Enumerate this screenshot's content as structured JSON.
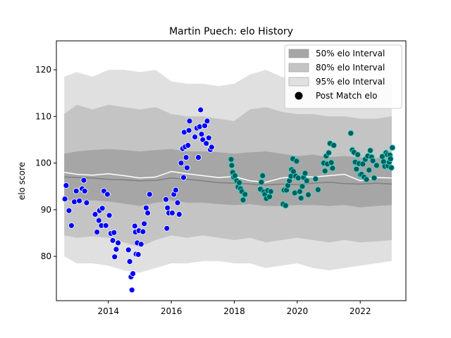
{
  "chart_data": {
    "type": "scatter",
    "title": "Martin Puech: elo History",
    "xlabel": "",
    "ylabel": "elo score",
    "xlim": [
      2012.35,
      2023.45
    ],
    "ylim": [
      70.5,
      126.2
    ],
    "x_ticks": [
      {
        "value": 2014,
        "label": "2014"
      },
      {
        "value": 2016,
        "label": "2016"
      },
      {
        "value": 2018,
        "label": "2018"
      },
      {
        "value": 2020,
        "label": "2020"
      },
      {
        "value": 2022,
        "label": "2022"
      }
    ],
    "y_ticks": [
      {
        "value": 80,
        "label": "80"
      },
      {
        "value": 90,
        "label": "90"
      },
      {
        "value": 100,
        "label": "100"
      },
      {
        "value": 110,
        "label": "110"
      },
      {
        "value": 120,
        "label": "120"
      }
    ],
    "grid": false,
    "legend_position": "top-right",
    "legend": [
      {
        "label": "50% elo Interval",
        "kind": "patch",
        "color": "#a6a6a6"
      },
      {
        "label": "80% elo Interval",
        "kind": "patch",
        "color": "#c4c4c4"
      },
      {
        "label": "95% elo Interval",
        "kind": "patch",
        "color": "#e0e0e0"
      },
      {
        "label": "Post Match elo",
        "kind": "marker",
        "color": "#000000"
      }
    ],
    "colors": {
      "band50": "#a6a6a6",
      "band80": "#c4c4c4",
      "band95": "#e0e0e0",
      "median_line": "#7f7f7f",
      "mean_line": "#ffffff",
      "points_early": "#0000ff",
      "points_late": "#006060",
      "points_late_edge": "#40e0d0",
      "point_edge": "#ffffff"
    },
    "bands": {
      "x": [
        2012.6,
        2013.0,
        2013.5,
        2014.0,
        2014.5,
        2015.0,
        2015.5,
        2016.0,
        2016.5,
        2017.0,
        2017.5,
        2018.0,
        2018.5,
        2019.0,
        2019.5,
        2020.0,
        2020.5,
        2021.0,
        2021.5,
        2022.0,
        2022.5,
        2023.0
      ],
      "p50_low": [
        92.2,
        91.9,
        92.0,
        91.8,
        91.3,
        90.8,
        91.5,
        92.0,
        91.5,
        91.5,
        91.2,
        91.0,
        91.2,
        90.8,
        90.8,
        91.0,
        91.0,
        90.8,
        91.0,
        90.5,
        90.8,
        91.0
      ],
      "p50_high": [
        102.0,
        102.5,
        102.8,
        103.0,
        102.8,
        102.5,
        102.8,
        103.0,
        102.5,
        102.5,
        102.3,
        102.0,
        102.3,
        102.5,
        102.0,
        101.5,
        101.8,
        101.3,
        101.5,
        101.2,
        101.0,
        101.3
      ],
      "p80_low": [
        84.5,
        84.0,
        84.3,
        84.0,
        83.0,
        82.0,
        83.5,
        84.5,
        84.0,
        84.5,
        84.0,
        83.5,
        84.0,
        83.0,
        83.5,
        84.0,
        83.5,
        83.0,
        83.5,
        83.0,
        83.2,
        83.5
      ],
      "p80_high": [
        110.5,
        112.5,
        111.5,
        112.5,
        112.0,
        111.5,
        112.0,
        110.5,
        110.0,
        110.0,
        109.5,
        109.0,
        111.5,
        112.0,
        111.0,
        110.5,
        110.5,
        110.0,
        110.0,
        109.5,
        109.5,
        110.0
      ],
      "p95_low": [
        80.0,
        78.5,
        78.5,
        78.0,
        77.0,
        76.5,
        77.5,
        78.5,
        78.5,
        79.0,
        79.0,
        78.5,
        78.5,
        77.5,
        78.0,
        78.5,
        77.5,
        77.0,
        77.5,
        78.0,
        78.5,
        79.0
      ],
      "p95_high": [
        118.5,
        119.5,
        118.5,
        120.0,
        120.0,
        119.5,
        120.0,
        117.5,
        117.0,
        117.0,
        116.5,
        117.0,
        119.0,
        120.0,
        118.5,
        118.0,
        117.5,
        117.0,
        117.0,
        117.0,
        117.5,
        118.0
      ]
    },
    "median_line": {
      "x": [
        2012.6,
        2013.0,
        2013.5,
        2014.0,
        2014.5,
        2015.0,
        2015.5,
        2016.0,
        2016.5,
        2017.0,
        2017.5,
        2018.0,
        2018.5,
        2019.0,
        2019.5,
        2020.0,
        2020.5,
        2021.0,
        2021.5,
        2022.0,
        2022.5,
        2023.0
      ],
      "y": [
        97.0,
        96.9,
        96.8,
        96.5,
        96.4,
        96.2,
        96.3,
        96.8,
        96.5,
        96.2,
        95.8,
        95.7,
        95.5,
        95.3,
        95.5,
        95.4,
        95.7,
        95.9,
        95.6,
        95.5,
        95.7,
        95.5
      ]
    },
    "mean_line": {
      "x": [
        2012.6,
        2013.0,
        2013.5,
        2014.0,
        2014.5,
        2015.0,
        2015.5,
        2016.0,
        2016.5,
        2017.0,
        2017.5,
        2018.0,
        2018.5,
        2019.0,
        2019.5,
        2020.0,
        2020.5,
        2021.0,
        2021.5,
        2022.0,
        2022.5,
        2023.0
      ],
      "y": [
        98.0,
        97.6,
        97.4,
        97.7,
        97.3,
        96.8,
        97.0,
        98.2,
        97.7,
        97.3,
        96.9,
        97.1,
        96.2,
        95.9,
        96.8,
        97.1,
        97.0,
        97.3,
        97.6,
        96.2,
        96.9,
        96.8
      ]
    },
    "series": [
      {
        "group": "early",
        "points": [
          [
            2012.62,
            92.3
          ],
          [
            2012.66,
            95.2
          ],
          [
            2012.75,
            89.8
          ],
          [
            2012.83,
            86.6
          ],
          [
            2012.92,
            91.7
          ],
          [
            2012.98,
            94.0
          ],
          [
            2013.08,
            91.9
          ],
          [
            2013.17,
            94.5
          ],
          [
            2013.22,
            96.3
          ],
          [
            2013.25,
            94.0
          ],
          [
            2013.31,
            91.5
          ],
          [
            2013.58,
            89.0
          ],
          [
            2013.64,
            85.2
          ],
          [
            2013.7,
            87.7
          ],
          [
            2013.72,
            89.8
          ],
          [
            2013.78,
            86.6
          ],
          [
            2013.81,
            90.3
          ],
          [
            2013.86,
            94.0
          ],
          [
            2013.92,
            86.6
          ],
          [
            2013.97,
            93.3
          ],
          [
            2014.03,
            88.8
          ],
          [
            2014.08,
            84.9
          ],
          [
            2014.14,
            83.4
          ],
          [
            2014.18,
            85.1
          ],
          [
            2014.2,
            79.9
          ],
          [
            2014.25,
            81.5
          ],
          [
            2014.31,
            82.9
          ],
          [
            2014.64,
            81.4
          ],
          [
            2014.68,
            78.9
          ],
          [
            2014.72,
            75.6
          ],
          [
            2014.75,
            72.8
          ],
          [
            2014.78,
            76.3
          ],
          [
            2014.84,
            86.5
          ],
          [
            2014.86,
            85.2
          ],
          [
            2014.88,
            80.5
          ],
          [
            2014.92,
            82.9
          ],
          [
            2014.95,
            80.4
          ],
          [
            2014.97,
            85.5
          ],
          [
            2015.04,
            82.6
          ],
          [
            2015.1,
            85.3
          ],
          [
            2015.14,
            87.0
          ],
          [
            2015.2,
            90.4
          ],
          [
            2015.25,
            89.3
          ],
          [
            2015.31,
            93.3
          ],
          [
            2015.83,
            92.2
          ],
          [
            2015.86,
            86.0
          ],
          [
            2015.88,
            90.4
          ],
          [
            2015.92,
            89.3
          ],
          [
            2016.03,
            89.3
          ],
          [
            2016.08,
            93.3
          ],
          [
            2016.14,
            94.2
          ],
          [
            2016.2,
            91.5
          ],
          [
            2016.25,
            89.0
          ],
          [
            2016.31,
            100.0
          ],
          [
            2016.36,
            103.1
          ],
          [
            2016.39,
            96.9
          ],
          [
            2016.41,
            106.6
          ],
          [
            2016.44,
            103.5
          ],
          [
            2016.47,
            101.2
          ],
          [
            2016.5,
            99.0
          ],
          [
            2016.53,
            103.8
          ],
          [
            2016.56,
            107.0
          ],
          [
            2016.58,
            109.0
          ],
          [
            2016.75,
            105.6
          ],
          [
            2016.81,
            107.5
          ],
          [
            2016.86,
            101.2
          ],
          [
            2016.9,
            107.8
          ],
          [
            2016.93,
            111.4
          ],
          [
            2016.96,
            106.2
          ],
          [
            2017.0,
            105.0
          ],
          [
            2017.06,
            108.0
          ],
          [
            2017.11,
            104.2
          ],
          [
            2017.14,
            109.0
          ],
          [
            2017.19,
            105.4
          ],
          [
            2017.24,
            102.9
          ],
          [
            2017.28,
            103.4
          ]
        ]
      },
      {
        "group": "late",
        "points": [
          [
            2017.9,
            100.8
          ],
          [
            2017.92,
            99.5
          ],
          [
            2017.95,
            98.0
          ],
          [
            2017.98,
            97.0
          ],
          [
            2018.02,
            97.3
          ],
          [
            2018.08,
            96.2
          ],
          [
            2018.12,
            94.9
          ],
          [
            2018.16,
            95.8
          ],
          [
            2018.2,
            94.5
          ],
          [
            2018.24,
            93.9
          ],
          [
            2018.28,
            92.1
          ],
          [
            2018.34,
            93.3
          ],
          [
            2018.83,
            94.4
          ],
          [
            2018.86,
            95.9
          ],
          [
            2018.9,
            97.3
          ],
          [
            2018.94,
            93.8
          ],
          [
            2018.97,
            93.3
          ],
          [
            2019.02,
            92.4
          ],
          [
            2019.06,
            94.1
          ],
          [
            2019.12,
            92.8
          ],
          [
            2019.16,
            93.9
          ],
          [
            2019.55,
            91.2
          ],
          [
            2019.58,
            94.2
          ],
          [
            2019.63,
            90.9
          ],
          [
            2019.66,
            94.2
          ],
          [
            2019.7,
            95.2
          ],
          [
            2019.75,
            96.2
          ],
          [
            2019.8,
            97.2
          ],
          [
            2019.82,
            98.6
          ],
          [
            2019.86,
            100.9
          ],
          [
            2019.88,
            98.2
          ],
          [
            2019.92,
            93.6
          ],
          [
            2019.95,
            97.2
          ],
          [
            2019.98,
            100.4
          ],
          [
            2020.03,
            96.8
          ],
          [
            2020.08,
            93.9
          ],
          [
            2020.12,
            92.5
          ],
          [
            2020.16,
            95.0
          ],
          [
            2020.2,
            96.9
          ],
          [
            2020.25,
            97.8
          ],
          [
            2020.3,
            96.2
          ],
          [
            2020.35,
            93.2
          ],
          [
            2020.58,
            96.6
          ],
          [
            2020.66,
            94.3
          ],
          [
            2020.84,
            100.0
          ],
          [
            2020.88,
            98.3
          ],
          [
            2020.92,
            101.5
          ],
          [
            2020.96,
            99.8
          ],
          [
            2021.0,
            102.2
          ],
          [
            2021.04,
            104.2
          ],
          [
            2021.08,
            100.1
          ],
          [
            2021.12,
            98.9
          ],
          [
            2021.16,
            103.8
          ],
          [
            2021.7,
            106.4
          ],
          [
            2021.75,
            102.8
          ],
          [
            2021.8,
            102.3
          ],
          [
            2021.84,
            100.2
          ],
          [
            2021.88,
            98.7
          ],
          [
            2021.92,
            101.8
          ],
          [
            2021.96,
            99.9
          ],
          [
            2022.0,
            97.5
          ],
          [
            2022.04,
            97.6
          ],
          [
            2022.08,
            99.8
          ],
          [
            2022.12,
            97.0
          ],
          [
            2022.16,
            100.8
          ],
          [
            2022.2,
            96.5
          ],
          [
            2022.24,
            101.5
          ],
          [
            2022.28,
            98.5
          ],
          [
            2022.32,
            102.7
          ],
          [
            2022.36,
            101.3
          ],
          [
            2022.4,
            100.5
          ],
          [
            2022.44,
            96.8
          ],
          [
            2022.52,
            99.5
          ],
          [
            2022.7,
            101.4
          ],
          [
            2022.74,
            100.3
          ],
          [
            2022.78,
            99.3
          ],
          [
            2022.82,
            102.2
          ],
          [
            2022.86,
            101.8
          ],
          [
            2022.88,
            99.4
          ],
          [
            2022.92,
            100.2
          ],
          [
            2022.94,
            101.7
          ],
          [
            2022.96,
            100.9
          ],
          [
            2022.99,
            99.0
          ],
          [
            2023.02,
            103.3
          ]
        ]
      }
    ]
  }
}
